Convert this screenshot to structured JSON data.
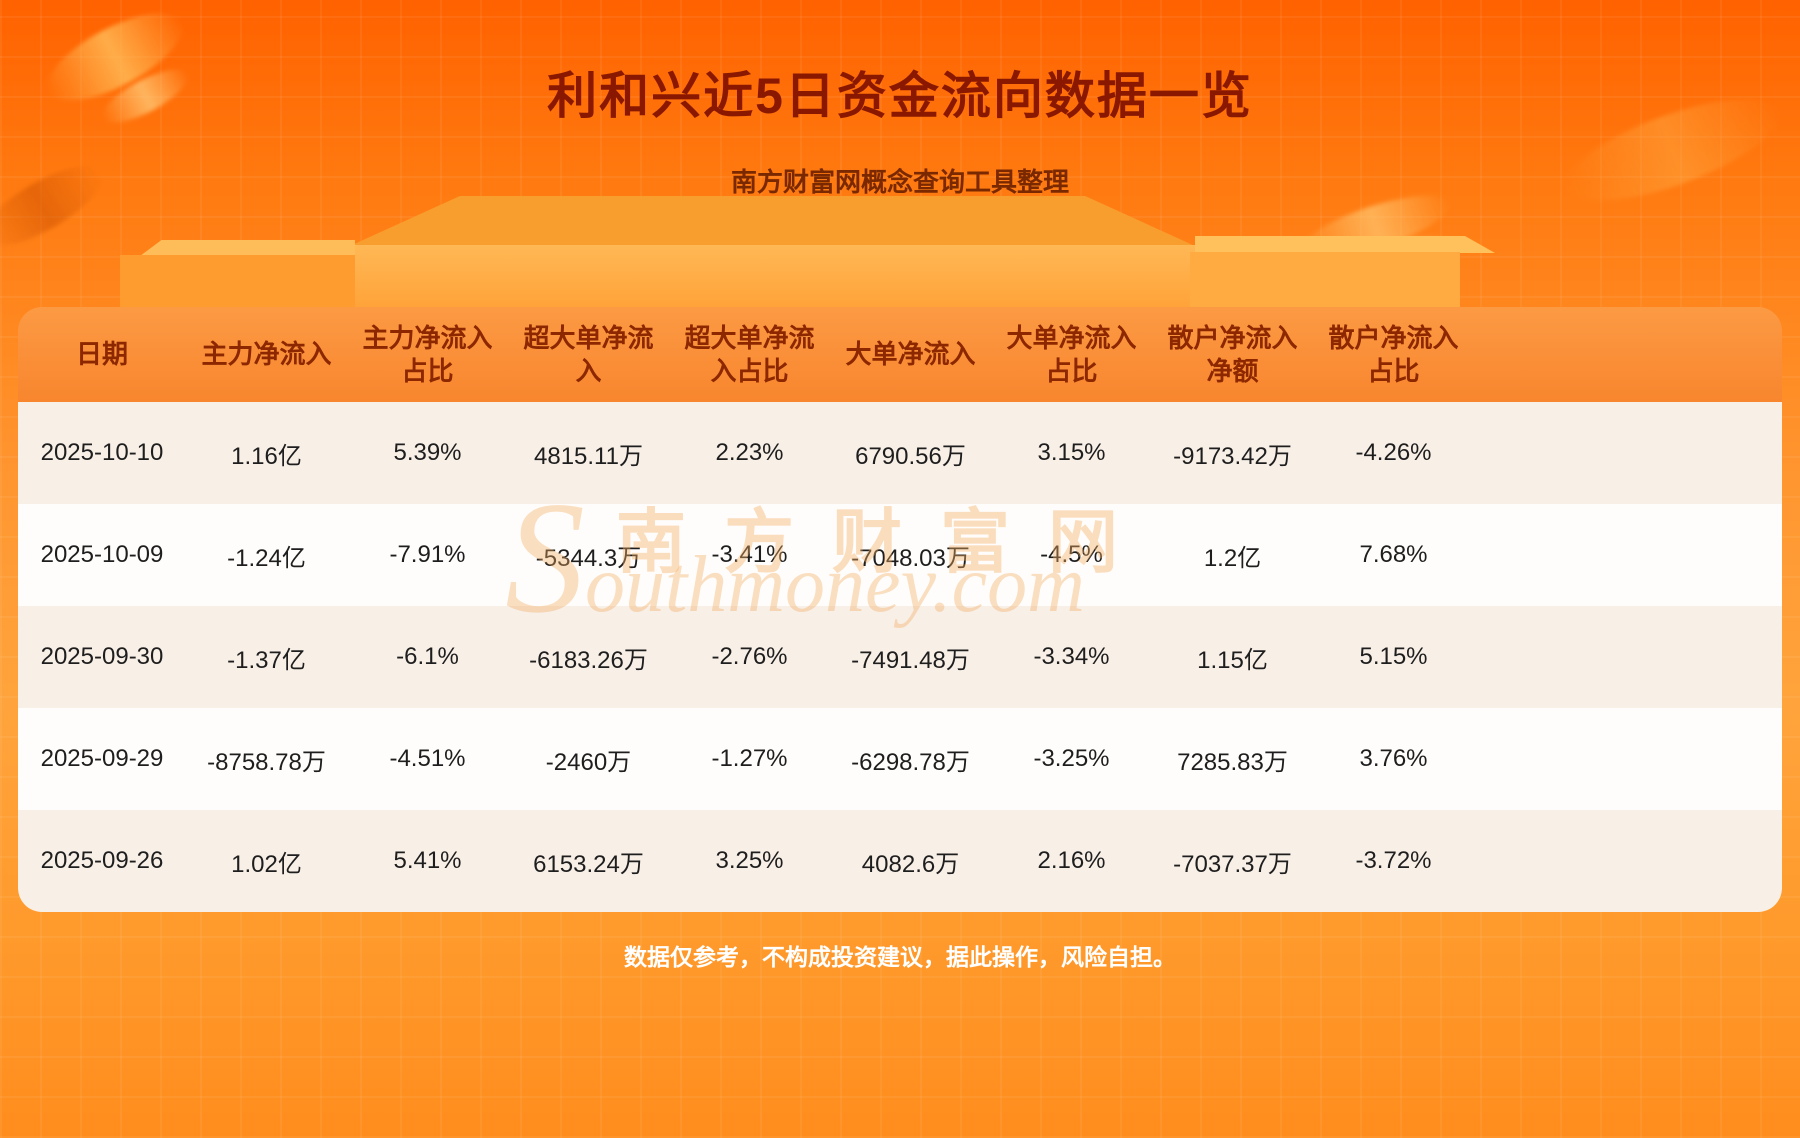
{
  "header": {
    "title": "利和兴近5日资金流向数据一览",
    "subtitle": "南方财富网概念查询工具整理"
  },
  "chart_data": {
    "type": "table",
    "title": "利和兴近5日资金流向数据一览",
    "columns": [
      "日期",
      "主力净流入",
      "主力净流入占比",
      "超大单净流入",
      "超大单净流入占比",
      "大单净流入",
      "大单净流入占比",
      "散户净流入净额",
      "散户净流入占比"
    ],
    "rows": [
      [
        "2025-10-10",
        "1.16亿",
        "5.39%",
        "4815.11万",
        "2.23%",
        "6790.56万",
        "3.15%",
        "-9173.42万",
        "-4.26%"
      ],
      [
        "2025-10-09",
        "-1.24亿",
        "-7.91%",
        "-5344.3万",
        "-3.41%",
        "-7048.03万",
        "-4.5%",
        "1.2亿",
        "7.68%"
      ],
      [
        "2025-09-30",
        "-1.37亿",
        "-6.1%",
        "-6183.26万",
        "-2.76%",
        "-7491.48万",
        "-3.34%",
        "1.15亿",
        "5.15%"
      ],
      [
        "2025-09-29",
        "-8758.78万",
        "-4.51%",
        "-2460万",
        "-1.27%",
        "-6298.78万",
        "-3.25%",
        "7285.83万",
        "3.76%"
      ],
      [
        "2025-09-26",
        "1.02亿",
        "5.41%",
        "6153.24万",
        "3.25%",
        "4082.6万",
        "2.16%",
        "-7037.37万",
        "-3.72%"
      ]
    ]
  },
  "watermark": {
    "chinese": "南方财富网",
    "english": "Southmoney.com"
  },
  "footer": {
    "disclaimer": "数据仅参考，不构成投资建议，据此操作，风险自担。"
  },
  "colors": {
    "background_orange": "#ff8c1a",
    "title_text": "#8a1700",
    "header_row_bg": "#f8862e",
    "header_row_text": "#8c2700",
    "row_odd_bg": "#f8efe7",
    "row_even_bg": "#fffdfb",
    "body_text": "#1e1e1e",
    "footer_text": "#ffffff"
  }
}
